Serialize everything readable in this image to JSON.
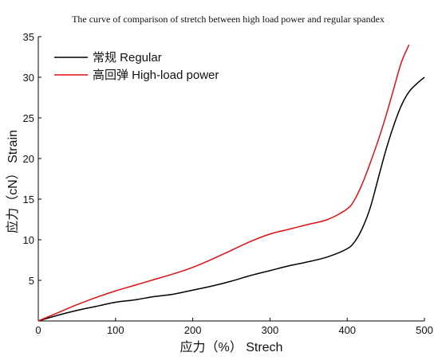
{
  "chart_data": {
    "type": "line",
    "title": "The curve of comparison of stretch between high load power and regular spandex",
    "xlabel": "应力（%） Strech",
    "ylabel": "应力（cN） Strain",
    "xlim": [
      0,
      500
    ],
    "ylim": [
      0,
      35
    ],
    "x_ticks": [
      "0",
      "100",
      "200",
      "300",
      "400",
      "500"
    ],
    "y_ticks": [
      "5",
      "10",
      "15",
      "20",
      "25",
      "30",
      "35"
    ],
    "grid": false,
    "legend_position": "top-left",
    "series": [
      {
        "name": "常规 Regular",
        "color": "#000000",
        "x": [
          0,
          25,
          50,
          75,
          100,
          125,
          150,
          175,
          200,
          225,
          250,
          275,
          300,
          325,
          350,
          375,
          400,
          410,
          420,
          430,
          440,
          450,
          460,
          470,
          480,
          490,
          500
        ],
        "y": [
          0,
          0.7,
          1.3,
          1.8,
          2.3,
          2.6,
          3.0,
          3.3,
          3.8,
          4.3,
          4.9,
          5.6,
          6.2,
          6.8,
          7.3,
          7.9,
          8.9,
          9.8,
          11.5,
          14.0,
          17.5,
          21.0,
          24.0,
          26.5,
          28.2,
          29.2,
          30.0
        ]
      },
      {
        "name": "高回弹 High-load power",
        "color": "#e01010",
        "x": [
          0,
          25,
          50,
          75,
          100,
          125,
          150,
          175,
          200,
          225,
          250,
          275,
          300,
          325,
          350,
          375,
          400,
          410,
          420,
          430,
          440,
          450,
          460,
          470,
          480
        ],
        "y": [
          0,
          1.0,
          2.0,
          2.9,
          3.7,
          4.4,
          5.1,
          5.8,
          6.6,
          7.6,
          8.7,
          9.8,
          10.7,
          11.3,
          11.9,
          12.5,
          13.8,
          15.0,
          17.0,
          19.5,
          22.2,
          25.2,
          28.5,
          31.8,
          34.0
        ]
      }
    ]
  }
}
